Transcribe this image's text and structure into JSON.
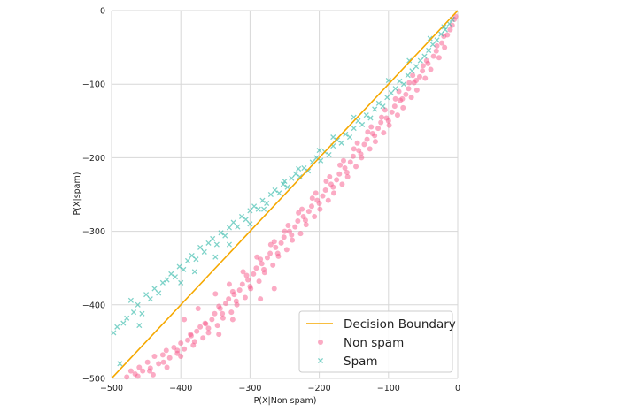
{
  "chart_data": {
    "type": "scatter",
    "title": "",
    "xlabel": "P(X|Non spam)",
    "ylabel": "P(X|spam)",
    "xlim": [
      -500,
      0
    ],
    "ylim": [
      -500,
      0
    ],
    "xticks": [
      -500,
      -400,
      -300,
      -200,
      -100,
      0
    ],
    "yticks": [
      -500,
      -400,
      -300,
      -200,
      -100,
      0
    ],
    "grid": true,
    "legend_position": "bottom-right",
    "colors": {
      "boundary": "#f5a800",
      "non_spam": "#f7578a",
      "spam": "#2ab5a5"
    },
    "boundary": {
      "name": "Decision Boundary",
      "x": [
        -500,
        0
      ],
      "y": [
        -500,
        0
      ]
    },
    "series": [
      {
        "name": "Non spam",
        "marker": "circle",
        "points": [
          [
            -478,
            -498
          ],
          [
            -472,
            -490
          ],
          [
            -466,
            -494
          ],
          [
            -460,
            -485
          ],
          [
            -455,
            -490
          ],
          [
            -448,
            -478
          ],
          [
            -444,
            -486
          ],
          [
            -438,
            -470
          ],
          [
            -432,
            -480
          ],
          [
            -426,
            -468
          ],
          [
            -421,
            -462
          ],
          [
            -416,
            -472
          ],
          [
            -410,
            -458
          ],
          [
            -405,
            -466
          ],
          [
            -400,
            -452
          ],
          [
            -395,
            -460
          ],
          [
            -390,
            -448
          ],
          [
            -386,
            -440
          ],
          [
            -382,
            -455
          ],
          [
            -377,
            -436
          ],
          [
            -372,
            -430
          ],
          [
            -368,
            -445
          ],
          [
            -364,
            -426
          ],
          [
            -360,
            -438
          ],
          [
            -355,
            -420
          ],
          [
            -351,
            -412
          ],
          [
            -347,
            -428
          ],
          [
            -343,
            -405
          ],
          [
            -339,
            -418
          ],
          [
            -335,
            -398
          ],
          [
            -331,
            -392
          ],
          [
            -327,
            -410
          ],
          [
            -323,
            -386
          ],
          [
            -319,
            -400
          ],
          [
            -315,
            -380
          ],
          [
            -311,
            -372
          ],
          [
            -307,
            -390
          ],
          [
            -303,
            -366
          ],
          [
            -299,
            -378
          ],
          [
            -295,
            -358
          ],
          [
            -291,
            -350
          ],
          [
            -287,
            -368
          ],
          [
            -283,
            -344
          ],
          [
            -279,
            -356
          ],
          [
            -275,
            -336
          ],
          [
            -271,
            -330
          ],
          [
            -267,
            -346
          ],
          [
            -263,
            -322
          ],
          [
            -259,
            -334
          ],
          [
            -255,
            -316
          ],
          [
            -251,
            -308
          ],
          [
            -247,
            -325
          ],
          [
            -243,
            -300
          ],
          [
            -239,
            -312
          ],
          [
            -235,
            -294
          ],
          [
            -231,
            -286
          ],
          [
            -227,
            -303
          ],
          [
            -223,
            -280
          ],
          [
            -219,
            -291
          ],
          [
            -215,
            -273
          ],
          [
            -211,
            -266
          ],
          [
            -207,
            -280
          ],
          [
            -203,
            -258
          ],
          [
            -199,
            -270
          ],
          [
            -195,
            -252
          ],
          [
            -191,
            -244
          ],
          [
            -187,
            -258
          ],
          [
            -183,
            -236
          ],
          [
            -179,
            -248
          ],
          [
            -175,
            -230
          ],
          [
            -171,
            -222
          ],
          [
            -167,
            -236
          ],
          [
            -163,
            -214
          ],
          [
            -159,
            -226
          ],
          [
            -155,
            -206
          ],
          [
            -151,
            -198
          ],
          [
            -147,
            -212
          ],
          [
            -143,
            -190
          ],
          [
            -139,
            -200
          ],
          [
            -135,
            -182
          ],
          [
            -131,
            -175
          ],
          [
            -127,
            -188
          ],
          [
            -123,
            -167
          ],
          [
            -119,
            -178
          ],
          [
            -115,
            -160
          ],
          [
            -111,
            -152
          ],
          [
            -107,
            -166
          ],
          [
            -103,
            -146
          ],
          [
            -99,
            -156
          ],
          [
            -95,
            -138
          ],
          [
            -91,
            -130
          ],
          [
            -87,
            -142
          ],
          [
            -83,
            -122
          ],
          [
            -79,
            -132
          ],
          [
            -75,
            -114
          ],
          [
            -71,
            -106
          ],
          [
            -67,
            -118
          ],
          [
            -63,
            -98
          ],
          [
            -59,
            -108
          ],
          [
            -55,
            -90
          ],
          [
            -51,
            -82
          ],
          [
            -47,
            -92
          ],
          [
            -43,
            -72
          ],
          [
            -39,
            -80
          ],
          [
            -35,
            -62
          ],
          [
            -31,
            -55
          ],
          [
            -27,
            -64
          ],
          [
            -23,
            -44
          ],
          [
            -19,
            -50
          ],
          [
            -15,
            -33
          ],
          [
            -11,
            -26
          ],
          [
            -8,
            -20
          ],
          [
            -5,
            -12
          ],
          [
            -3,
            -8
          ],
          [
            -60,
            -95
          ],
          [
            -80,
            -120
          ],
          [
            -100,
            -150
          ],
          [
            -120,
            -170
          ],
          [
            -140,
            -195
          ],
          [
            -160,
            -220
          ],
          [
            -180,
            -240
          ],
          [
            -200,
            -262
          ],
          [
            -220,
            -285
          ],
          [
            -240,
            -305
          ],
          [
            -260,
            -330
          ],
          [
            -280,
            -352
          ],
          [
            -300,
            -375
          ],
          [
            -320,
            -395
          ],
          [
            -340,
            -412
          ],
          [
            -360,
            -432
          ],
          [
            -380,
            -450
          ],
          [
            -400,
            -470
          ],
          [
            -420,
            -485
          ],
          [
            -440,
            -495
          ],
          [
            -350,
            -385
          ],
          [
            -330,
            -372
          ],
          [
            -310,
            -355
          ],
          [
            -290,
            -335
          ],
          [
            -270,
            -318
          ],
          [
            -250,
            -300
          ],
          [
            -230,
            -275
          ],
          [
            -210,
            -255
          ],
          [
            -190,
            -232
          ],
          [
            -170,
            -210
          ],
          [
            -150,
            -188
          ],
          [
            -130,
            -165
          ],
          [
            -110,
            -145
          ],
          [
            -90,
            -120
          ],
          [
            -70,
            -98
          ],
          [
            -50,
            -75
          ],
          [
            -30,
            -48
          ],
          [
            -20,
            -35
          ],
          [
            -45,
            -68
          ],
          [
            -65,
            -88
          ],
          [
            -85,
            -110
          ],
          [
            -105,
            -135
          ],
          [
            -125,
            -158
          ],
          [
            -145,
            -180
          ],
          [
            -165,
            -204
          ],
          [
            -185,
            -226
          ],
          [
            -205,
            -248
          ],
          [
            -225,
            -270
          ],
          [
            -245,
            -292
          ],
          [
            -265,
            -314
          ],
          [
            -285,
            -338
          ],
          [
            -305,
            -360
          ],
          [
            -325,
            -382
          ],
          [
            -345,
            -402
          ],
          [
            -365,
            -425
          ],
          [
            -385,
            -442
          ],
          [
            -405,
            -462
          ],
          [
            -425,
            -478
          ],
          [
            -445,
            -490
          ],
          [
            -462,
            -497
          ],
          [
            -395,
            -420
          ],
          [
            -375,
            -405
          ],
          [
            -345,
            -440
          ],
          [
            -325,
            -420
          ],
          [
            -285,
            -392
          ],
          [
            -265,
            -378
          ]
        ]
      },
      {
        "name": "Spam",
        "marker": "x",
        "points": [
          [
            -497,
            -438
          ],
          [
            -492,
            -430
          ],
          [
            -488,
            -480
          ],
          [
            -483,
            -425
          ],
          [
            -478,
            -418
          ],
          [
            -472,
            -394
          ],
          [
            -468,
            -410
          ],
          [
            -462,
            -400
          ],
          [
            -456,
            -412
          ],
          [
            -450,
            -386
          ],
          [
            -444,
            -392
          ],
          [
            -438,
            -378
          ],
          [
            -432,
            -384
          ],
          [
            -426,
            -370
          ],
          [
            -420,
            -366
          ],
          [
            -414,
            -358
          ],
          [
            -408,
            -362
          ],
          [
            -402,
            -348
          ],
          [
            -396,
            -352
          ],
          [
            -390,
            -340
          ],
          [
            -384,
            -333
          ],
          [
            -378,
            -338
          ],
          [
            -372,
            -322
          ],
          [
            -366,
            -328
          ],
          [
            -360,
            -316
          ],
          [
            -354,
            -310
          ],
          [
            -348,
            -318
          ],
          [
            -342,
            -302
          ],
          [
            -336,
            -306
          ],
          [
            -330,
            -295
          ],
          [
            -324,
            -288
          ],
          [
            -318,
            -294
          ],
          [
            -312,
            -280
          ],
          [
            -306,
            -284
          ],
          [
            -300,
            -272
          ],
          [
            -294,
            -266
          ],
          [
            -288,
            -270
          ],
          [
            -282,
            -258
          ],
          [
            -276,
            -262
          ],
          [
            -270,
            -250
          ],
          [
            -264,
            -244
          ],
          [
            -258,
            -248
          ],
          [
            -252,
            -236
          ],
          [
            -246,
            -240
          ],
          [
            -240,
            -228
          ],
          [
            -234,
            -222
          ],
          [
            -228,
            -226
          ],
          [
            -222,
            -214
          ],
          [
            -216,
            -218
          ],
          [
            -210,
            -206
          ],
          [
            -204,
            -200
          ],
          [
            -198,
            -204
          ],
          [
            -192,
            -192
          ],
          [
            -186,
            -196
          ],
          [
            -180,
            -184
          ],
          [
            -174,
            -176
          ],
          [
            -168,
            -180
          ],
          [
            -162,
            -168
          ],
          [
            -156,
            -172
          ],
          [
            -150,
            -160
          ],
          [
            -144,
            -150
          ],
          [
            -138,
            -155
          ],
          [
            -132,
            -142
          ],
          [
            -126,
            -146
          ],
          [
            -120,
            -134
          ],
          [
            -114,
            -126
          ],
          [
            -108,
            -130
          ],
          [
            -102,
            -118
          ],
          [
            -96,
            -112
          ],
          [
            -90,
            -106
          ],
          [
            -84,
            -96
          ],
          [
            -78,
            -100
          ],
          [
            -72,
            -88
          ],
          [
            -66,
            -82
          ],
          [
            -60,
            -76
          ],
          [
            -54,
            -68
          ],
          [
            -48,
            -62
          ],
          [
            -42,
            -54
          ],
          [
            -36,
            -46
          ],
          [
            -30,
            -40
          ],
          [
            -24,
            -32
          ],
          [
            -18,
            -26
          ],
          [
            -12,
            -18
          ],
          [
            -8,
            -12
          ],
          [
            -460,
            -428
          ],
          [
            -400,
            -370
          ],
          [
            -350,
            -335
          ],
          [
            -300,
            -290
          ],
          [
            -250,
            -232
          ],
          [
            -200,
            -190
          ],
          [
            -150,
            -145
          ],
          [
            -100,
            -95
          ],
          [
            -70,
            -68
          ],
          [
            -40,
            -38
          ],
          [
            -20,
            -22
          ],
          [
            -380,
            -355
          ],
          [
            -330,
            -318
          ],
          [
            -280,
            -270
          ],
          [
            -230,
            -215
          ],
          [
            -180,
            -172
          ]
        ]
      }
    ]
  }
}
